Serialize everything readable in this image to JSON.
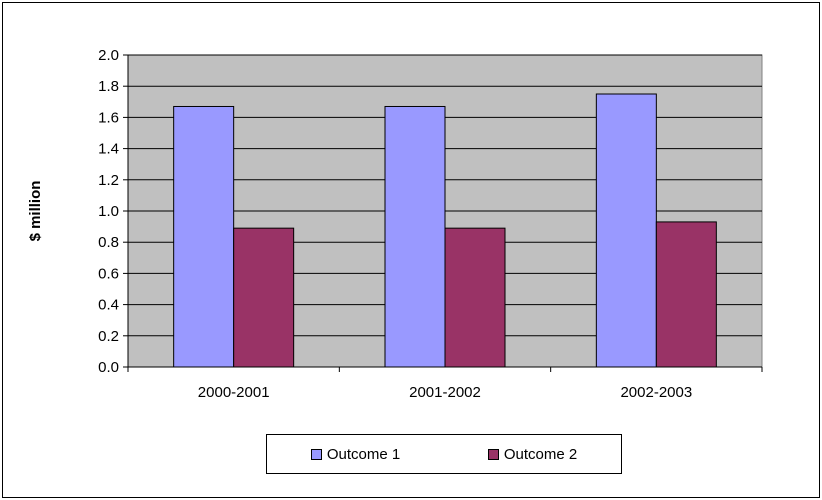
{
  "chart_data": {
    "type": "bar",
    "categories": [
      "2000-2001",
      "2001-2002",
      "2002-2003"
    ],
    "series": [
      {
        "name": "Outcome 1",
        "values": [
          1.67,
          1.67,
          1.75
        ],
        "color": "#9999ff"
      },
      {
        "name": "Outcome 2",
        "values": [
          0.89,
          0.89,
          0.93
        ],
        "color": "#993366"
      }
    ],
    "title": "",
    "xlabel": "",
    "ylabel": "$ million",
    "ylim": [
      0,
      2.0
    ],
    "yticks": [
      "0.0",
      "0.2",
      "0.4",
      "0.6",
      "0.8",
      "1.0",
      "1.2",
      "1.4",
      "1.6",
      "1.8",
      "2.0"
    ],
    "grid": true,
    "plot_background": "#c0c0c0",
    "legend_position": "bottom"
  }
}
